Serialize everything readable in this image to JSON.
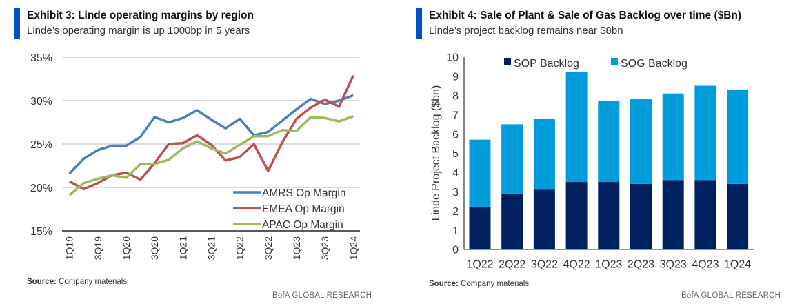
{
  "chart_data": [
    {
      "type": "line",
      "exhibit_title": "Exhibit 3: Linde operating margins by region",
      "subtitle": "Linde’s operating margin is up 1000bp in 5 years",
      "source_label": "Source:",
      "source_text": "Company materials",
      "brand": "BofA GLOBAL RESEARCH",
      "x": [
        "1Q19",
        "2Q19",
        "3Q19",
        "4Q19",
        "1Q20",
        "2Q20",
        "3Q20",
        "4Q20",
        "1Q21",
        "2Q21",
        "3Q21",
        "4Q21",
        "1Q22",
        "2Q22",
        "3Q22",
        "4Q22",
        "1Q23",
        "2Q23",
        "3Q23",
        "4Q23",
        "1Q24"
      ],
      "x_tick_labels": [
        "1Q19",
        "3Q19",
        "1Q20",
        "3Q20",
        "1Q21",
        "3Q21",
        "1Q22",
        "3Q22",
        "1Q23",
        "3Q23",
        "1Q24"
      ],
      "ylim": [
        15,
        35
      ],
      "y_ticks": [
        15,
        20,
        25,
        30,
        35
      ],
      "y_tick_labels": [
        "15%",
        "20%",
        "25%",
        "30%",
        "35%"
      ],
      "grid": true,
      "legend_placement": "bottom-right",
      "series": [
        {
          "name": "AMRS Op Margin",
          "color": "#4a7ebf",
          "values": [
            21.6,
            23.3,
            24.3,
            24.8,
            24.8,
            25.8,
            28.1,
            27.5,
            28.0,
            28.9,
            27.8,
            26.8,
            27.9,
            26.0,
            26.4,
            27.7,
            29.0,
            30.2,
            29.6,
            30.0,
            30.6
          ]
        },
        {
          "name": "EMEA Op Margin",
          "color": "#c0504d",
          "values": [
            20.7,
            19.8,
            20.5,
            21.4,
            21.7,
            20.9,
            22.8,
            25.0,
            25.1,
            26.0,
            24.9,
            23.1,
            23.5,
            25.0,
            21.9,
            25.2,
            27.9,
            29.2,
            30.1,
            29.3,
            32.9
          ]
        },
        {
          "name": "APAC Op Margin",
          "color": "#9bbb59",
          "values": [
            19.1,
            20.5,
            21.0,
            21.4,
            21.1,
            22.7,
            22.7,
            23.2,
            24.5,
            25.3,
            24.5,
            23.9,
            24.9,
            25.9,
            25.9,
            26.6,
            26.5,
            28.1,
            28.0,
            27.6,
            28.2
          ]
        }
      ]
    },
    {
      "type": "bar",
      "stacked": true,
      "exhibit_title": "Exhibit 4: Sale of Plant & Sale of Gas Backlog over time ($Bn)",
      "subtitle": "Linde’s project backlog remains near $8bn",
      "source_label": "Source:",
      "source_text": "Company materials",
      "brand": "BofA GLOBAL RESEARCH",
      "ylabel": "Linde Project Backlog ($bn)",
      "categories": [
        "1Q22",
        "2Q22",
        "3Q22",
        "4Q22",
        "1Q23",
        "2Q23",
        "3Q23",
        "4Q23",
        "1Q24"
      ],
      "ylim": [
        0,
        10
      ],
      "y_ticks": [
        0,
        1,
        2,
        3,
        4,
        5,
        6,
        7,
        8,
        9,
        10
      ],
      "grid": false,
      "legend_placement": "top",
      "series": [
        {
          "name": "SOP Backlog",
          "color": "#002060",
          "values": [
            2.2,
            2.9,
            3.1,
            3.5,
            3.5,
            3.4,
            3.6,
            3.6,
            3.4
          ]
        },
        {
          "name": "SOG Backlog",
          "color": "#009ddc",
          "values": [
            3.5,
            3.6,
            3.7,
            5.7,
            4.2,
            4.4,
            4.5,
            4.9,
            4.9
          ]
        }
      ]
    }
  ]
}
